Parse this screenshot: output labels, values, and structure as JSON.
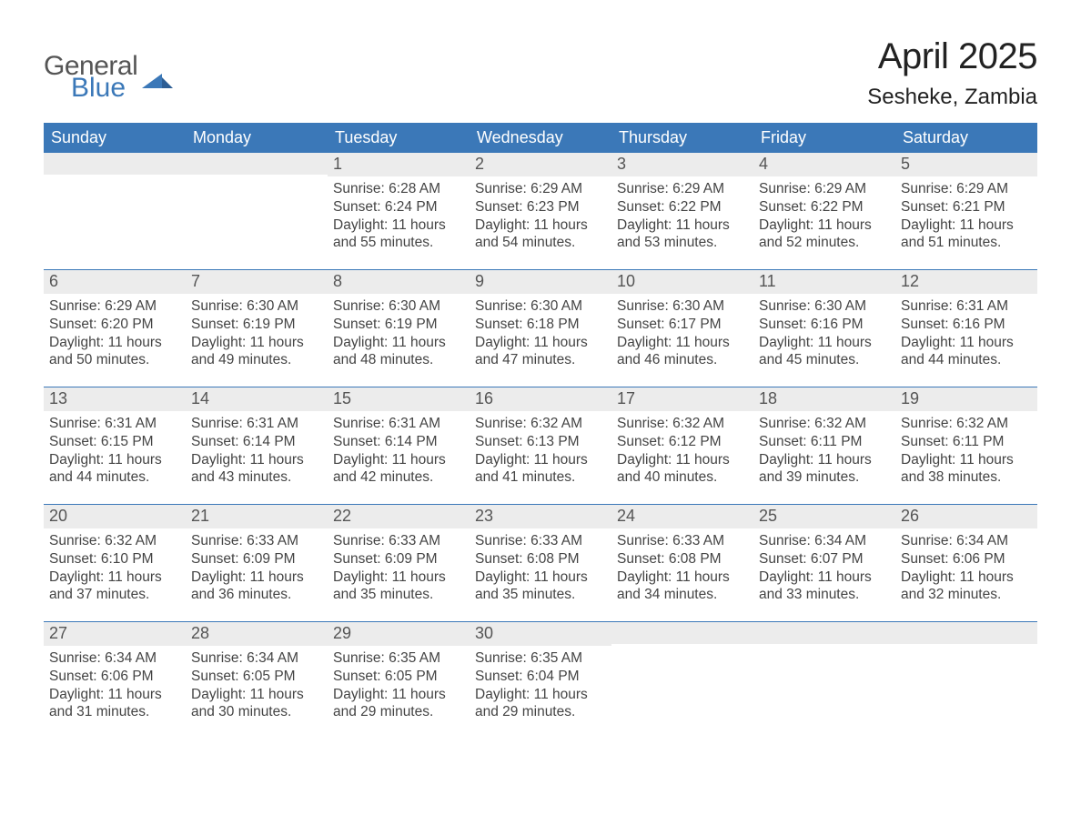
{
  "logo": {
    "text1": "General",
    "text2": "Blue",
    "accent_color": "#3b78b8"
  },
  "title": "April 2025",
  "subtitle": "Sesheke, Zambia",
  "colors": {
    "header_bg": "#3b78b8",
    "header_text": "#ffffff",
    "row_separator": "#3b78b8",
    "daynum_band_bg": "#ececec",
    "page_bg": "#ffffff",
    "text": "#333333"
  },
  "weekdays": [
    "Sunday",
    "Monday",
    "Tuesday",
    "Wednesday",
    "Thursday",
    "Friday",
    "Saturday"
  ],
  "first_weekday_index": 2,
  "days": [
    {
      "num": 1,
      "sunrise": "6:28 AM",
      "sunset": "6:24 PM",
      "daylight": "11 hours and 55 minutes."
    },
    {
      "num": 2,
      "sunrise": "6:29 AM",
      "sunset": "6:23 PM",
      "daylight": "11 hours and 54 minutes."
    },
    {
      "num": 3,
      "sunrise": "6:29 AM",
      "sunset": "6:22 PM",
      "daylight": "11 hours and 53 minutes."
    },
    {
      "num": 4,
      "sunrise": "6:29 AM",
      "sunset": "6:22 PM",
      "daylight": "11 hours and 52 minutes."
    },
    {
      "num": 5,
      "sunrise": "6:29 AM",
      "sunset": "6:21 PM",
      "daylight": "11 hours and 51 minutes."
    },
    {
      "num": 6,
      "sunrise": "6:29 AM",
      "sunset": "6:20 PM",
      "daylight": "11 hours and 50 minutes."
    },
    {
      "num": 7,
      "sunrise": "6:30 AM",
      "sunset": "6:19 PM",
      "daylight": "11 hours and 49 minutes."
    },
    {
      "num": 8,
      "sunrise": "6:30 AM",
      "sunset": "6:19 PM",
      "daylight": "11 hours and 48 minutes."
    },
    {
      "num": 9,
      "sunrise": "6:30 AM",
      "sunset": "6:18 PM",
      "daylight": "11 hours and 47 minutes."
    },
    {
      "num": 10,
      "sunrise": "6:30 AM",
      "sunset": "6:17 PM",
      "daylight": "11 hours and 46 minutes."
    },
    {
      "num": 11,
      "sunrise": "6:30 AM",
      "sunset": "6:16 PM",
      "daylight": "11 hours and 45 minutes."
    },
    {
      "num": 12,
      "sunrise": "6:31 AM",
      "sunset": "6:16 PM",
      "daylight": "11 hours and 44 minutes."
    },
    {
      "num": 13,
      "sunrise": "6:31 AM",
      "sunset": "6:15 PM",
      "daylight": "11 hours and 44 minutes."
    },
    {
      "num": 14,
      "sunrise": "6:31 AM",
      "sunset": "6:14 PM",
      "daylight": "11 hours and 43 minutes."
    },
    {
      "num": 15,
      "sunrise": "6:31 AM",
      "sunset": "6:14 PM",
      "daylight": "11 hours and 42 minutes."
    },
    {
      "num": 16,
      "sunrise": "6:32 AM",
      "sunset": "6:13 PM",
      "daylight": "11 hours and 41 minutes."
    },
    {
      "num": 17,
      "sunrise": "6:32 AM",
      "sunset": "6:12 PM",
      "daylight": "11 hours and 40 minutes."
    },
    {
      "num": 18,
      "sunrise": "6:32 AM",
      "sunset": "6:11 PM",
      "daylight": "11 hours and 39 minutes."
    },
    {
      "num": 19,
      "sunrise": "6:32 AM",
      "sunset": "6:11 PM",
      "daylight": "11 hours and 38 minutes."
    },
    {
      "num": 20,
      "sunrise": "6:32 AM",
      "sunset": "6:10 PM",
      "daylight": "11 hours and 37 minutes."
    },
    {
      "num": 21,
      "sunrise": "6:33 AM",
      "sunset": "6:09 PM",
      "daylight": "11 hours and 36 minutes."
    },
    {
      "num": 22,
      "sunrise": "6:33 AM",
      "sunset": "6:09 PM",
      "daylight": "11 hours and 35 minutes."
    },
    {
      "num": 23,
      "sunrise": "6:33 AM",
      "sunset": "6:08 PM",
      "daylight": "11 hours and 35 minutes."
    },
    {
      "num": 24,
      "sunrise": "6:33 AM",
      "sunset": "6:08 PM",
      "daylight": "11 hours and 34 minutes."
    },
    {
      "num": 25,
      "sunrise": "6:34 AM",
      "sunset": "6:07 PM",
      "daylight": "11 hours and 33 minutes."
    },
    {
      "num": 26,
      "sunrise": "6:34 AM",
      "sunset": "6:06 PM",
      "daylight": "11 hours and 32 minutes."
    },
    {
      "num": 27,
      "sunrise": "6:34 AM",
      "sunset": "6:06 PM",
      "daylight": "11 hours and 31 minutes."
    },
    {
      "num": 28,
      "sunrise": "6:34 AM",
      "sunset": "6:05 PM",
      "daylight": "11 hours and 30 minutes."
    },
    {
      "num": 29,
      "sunrise": "6:35 AM",
      "sunset": "6:05 PM",
      "daylight": "11 hours and 29 minutes."
    },
    {
      "num": 30,
      "sunrise": "6:35 AM",
      "sunset": "6:04 PM",
      "daylight": "11 hours and 29 minutes."
    }
  ],
  "labels": {
    "sunrise": "Sunrise:",
    "sunset": "Sunset:",
    "daylight": "Daylight:"
  }
}
